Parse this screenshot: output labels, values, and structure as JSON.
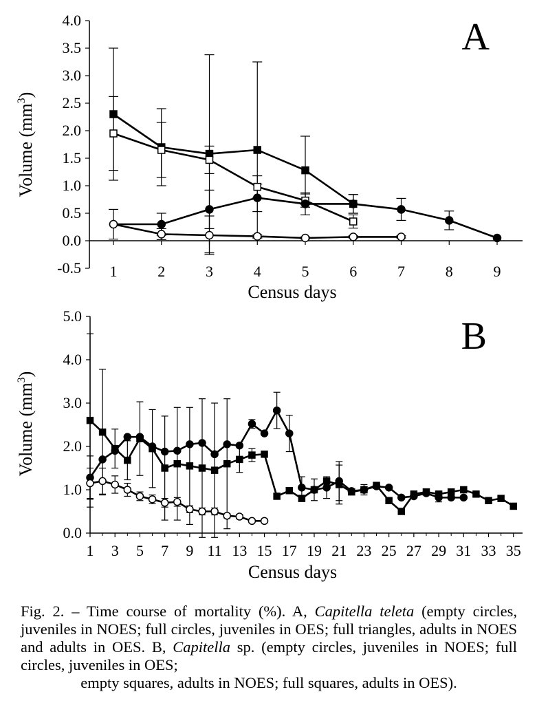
{
  "chart_data": [
    {
      "panel": "A",
      "type": "line",
      "ylabel_main": "Volume (mm",
      "ylabel_sup": "3",
      "ylabel_close": ")",
      "xlabel": "Census days",
      "ylim": [
        -0.5,
        4.0
      ],
      "yticks": [
        "4.0",
        "3.5",
        "3.0",
        "2.5",
        "2.0",
        "1.5",
        "1.0",
        "0.5",
        "0.0",
        "-0.5"
      ],
      "xticks": [
        "1",
        "2",
        "3",
        "4",
        "5",
        "6",
        "7",
        "8",
        "9"
      ],
      "series": [
        {
          "marker": "filled-square",
          "x": [
            1,
            2,
            3,
            4,
            5,
            6
          ],
          "y": [
            2.3,
            1.7,
            1.58,
            1.65,
            1.28,
            0.67
          ],
          "err": [
            1.2,
            0.7,
            1.8,
            1.6,
            0.62,
            0.17
          ]
        },
        {
          "marker": "empty-square",
          "x": [
            1,
            2,
            3,
            4,
            5,
            6
          ],
          "y": [
            1.95,
            1.65,
            1.47,
            0.98,
            0.73,
            0.35
          ],
          "err": [
            0.67,
            0.5,
            0.25,
            0.2,
            0.12,
            0.12
          ]
        },
        {
          "marker": "filled-circle",
          "x": [
            1,
            2,
            3,
            4,
            5,
            6,
            7,
            8,
            9
          ],
          "y": [
            0.3,
            0.3,
            0.57,
            0.78,
            0.67,
            0.67,
            0.57,
            0.37,
            0.05
          ],
          "err": [
            0.27,
            0.2,
            0.35,
            0.25,
            0.2,
            0.17,
            0.2,
            0.17,
            0.0
          ]
        },
        {
          "marker": "empty-circle",
          "x": [
            1,
            2,
            3,
            4,
            5,
            6,
            7
          ],
          "y": [
            0.3,
            0.12,
            0.1,
            0.08,
            0.05,
            0.07,
            0.07
          ],
          "err": [
            0.0,
            0.1,
            0.35,
            0.03,
            0.02,
            0.02,
            0.02
          ]
        }
      ]
    },
    {
      "panel": "B",
      "type": "line",
      "ylabel_main": "Volume (mm",
      "ylabel_sup": "3",
      "ylabel_close": ")",
      "xlabel": "Census days",
      "ylim": [
        0.0,
        5.0
      ],
      "yticks": [
        "5.0",
        "4.0",
        "3.0",
        "2.0",
        "1.0",
        "0.0"
      ],
      "xticks": [
        "1",
        "3",
        "5",
        "7",
        "9",
        "11",
        "13",
        "15",
        "17",
        "19",
        "21",
        "23",
        "25",
        "27",
        "29",
        "31",
        "33",
        "35"
      ],
      "series": [
        {
          "marker": "filled-square",
          "x": [
            1,
            2,
            3,
            4,
            5,
            6,
            7,
            8,
            9,
            10,
            11,
            12,
            13,
            14,
            15,
            16,
            17,
            18,
            19,
            20,
            21,
            22,
            23,
            24,
            25,
            26,
            27,
            28,
            29,
            30,
            31,
            32,
            33,
            34,
            35
          ],
          "y": [
            2.6,
            2.33,
            1.95,
            1.68,
            2.18,
            1.95,
            1.5,
            1.6,
            1.55,
            1.5,
            1.45,
            1.6,
            1.7,
            1.8,
            1.82,
            0.85,
            0.98,
            0.8,
            1.0,
            1.2,
            1.12,
            0.95,
            1.0,
            1.1,
            0.75,
            0.5,
            0.9,
            0.95,
            0.9,
            0.95,
            1.0,
            0.9,
            0.75,
            0.8,
            0.62
          ],
          "err": [
            2.0,
            1.45,
            0.45,
            0.45,
            0.85,
            0.9,
            1.2,
            1.3,
            1.35,
            1.6,
            1.55,
            1.5,
            0.3,
            0.15,
            0.0,
            0.0,
            0.0,
            0.0,
            0.0,
            0.0,
            0.45,
            0.0,
            0.0,
            0.0,
            0.0,
            0.0,
            0.0,
            0.0,
            0.0,
            0.0,
            0.0,
            0.0,
            0.0,
            0.0,
            0.0
          ]
        },
        {
          "marker": "filled-circle",
          "x": [
            1,
            2,
            3,
            4,
            5,
            6,
            7,
            8,
            9,
            10,
            11,
            12,
            13,
            14,
            15,
            16,
            17,
            18,
            19,
            20,
            21,
            22,
            23,
            24,
            25,
            26,
            27,
            28,
            29,
            30,
            31
          ],
          "y": [
            1.28,
            1.7,
            1.9,
            2.22,
            2.22,
            2.0,
            1.88,
            1.9,
            2.05,
            2.08,
            1.82,
            2.05,
            2.02,
            2.52,
            2.3,
            2.83,
            2.3,
            1.05,
            1.0,
            1.05,
            1.2,
            0.97,
            1.0,
            1.08,
            1.05,
            0.82,
            0.85,
            0.92,
            0.82,
            0.82,
            0.82
          ],
          "err": [
            0.5,
            0.0,
            0.0,
            0.0,
            0.0,
            0.0,
            0.0,
            0.0,
            0.0,
            0.0,
            0.0,
            0.0,
            0.0,
            0.1,
            0.0,
            0.42,
            0.42,
            0.25,
            0.25,
            0.25,
            0.45,
            0.0,
            0.12,
            0.0,
            0.0,
            0.0,
            0.0,
            0.0,
            0.1,
            0.0,
            0.0
          ]
        },
        {
          "marker": "empty-circle",
          "x": [
            1,
            2,
            3,
            4,
            5,
            6,
            7,
            8,
            9,
            10,
            11,
            12,
            13,
            14,
            15
          ],
          "y": [
            1.15,
            1.2,
            1.12,
            1.0,
            0.85,
            0.78,
            0.7,
            0.72,
            0.55,
            0.5,
            0.5,
            0.4,
            0.38,
            0.28,
            0.28
          ],
          "err": [
            0.35,
            0.3,
            0.2,
            0.15,
            0.1,
            0.1,
            0.1,
            0.1,
            0.08,
            0.08,
            0.08,
            0.05,
            0.05,
            0.0,
            0.0
          ]
        }
      ]
    }
  ],
  "caption": {
    "prefix": "Fig. 2. – Time course of mortality (%). A, ",
    "species_a": "Capitella teleta",
    "middle": " (empty circles, juveniles in NOES; full circles, juveniles in OES; full triangles, adults in NOES and adults in OES. B, ",
    "species_b": "Capitella",
    "suffix_1": " sp. (empty circles, juveniles in NOES; full circles, juveniles in OES;",
    "suffix_2": "empty squares, adults in NOES; full squares, adults in OES)."
  }
}
